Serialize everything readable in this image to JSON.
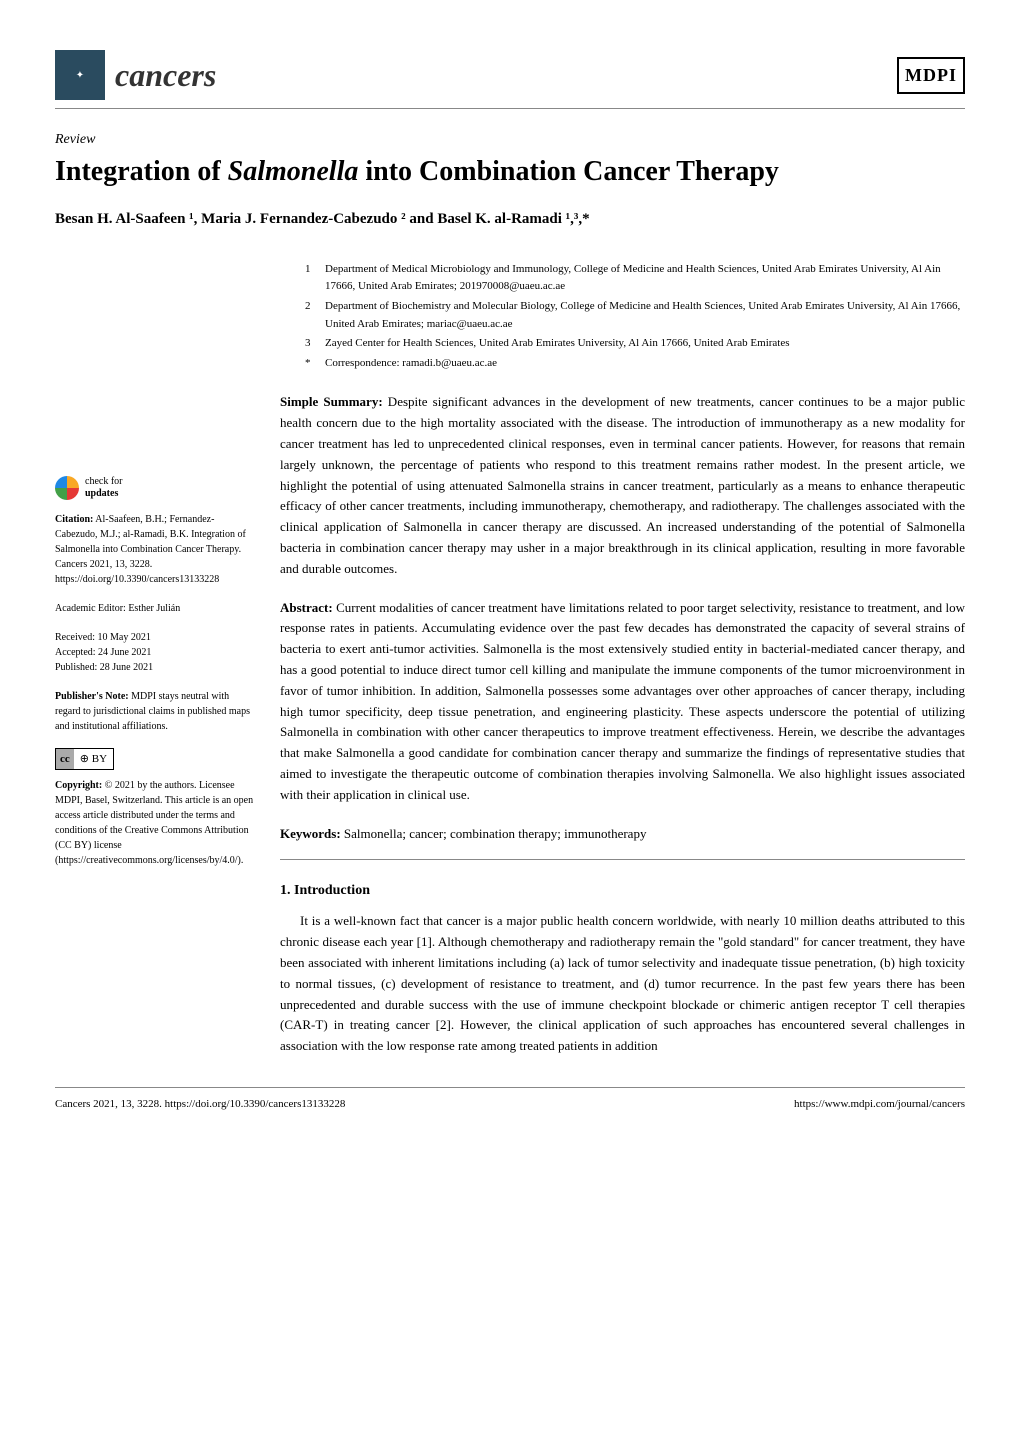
{
  "journal": {
    "name": "cancers",
    "publisher": "MDPI"
  },
  "article": {
    "type": "Review",
    "title_pre": "Integration of ",
    "title_em": "Salmonella",
    "title_post": " into Combination Cancer Therapy",
    "authors": "Besan H. Al-Saafeen ¹, Maria J. Fernandez-Cabezudo ² and Basel K. al-Ramadi ¹,³,*"
  },
  "affiliations": [
    {
      "num": "1",
      "text": "Department of Medical Microbiology and Immunology, College of Medicine and Health Sciences, United Arab Emirates University, Al Ain 17666, United Arab Emirates; 201970008@uaeu.ac.ae"
    },
    {
      "num": "2",
      "text": "Department of Biochemistry and Molecular Biology, College of Medicine and Health Sciences, United Arab Emirates University, Al Ain 17666, United Arab Emirates; mariac@uaeu.ac.ae"
    },
    {
      "num": "3",
      "text": "Zayed Center for Health Sciences, United Arab Emirates University, Al Ain 17666, United Arab Emirates"
    },
    {
      "num": "*",
      "text": "Correspondence: ramadi.b@uaeu.ac.ae"
    }
  ],
  "simple_summary": {
    "label": "Simple Summary:",
    "text": " Despite significant advances in the development of new treatments, cancer continues to be a major public health concern due to the high mortality associated with the disease. The introduction of immunotherapy as a new modality for cancer treatment has led to unprecedented clinical responses, even in terminal cancer patients. However, for reasons that remain largely unknown, the percentage of patients who respond to this treatment remains rather modest. In the present article, we highlight the potential of using attenuated Salmonella strains in cancer treatment, particularly as a means to enhance therapeutic efficacy of other cancer treatments, including immunotherapy, chemotherapy, and radiotherapy. The challenges associated with the clinical application of Salmonella in cancer therapy are discussed. An increased understanding of the potential of Salmonella bacteria in combination cancer therapy may usher in a major breakthrough in its clinical application, resulting in more favorable and durable outcomes."
  },
  "abstract": {
    "label": "Abstract:",
    "text": " Current modalities of cancer treatment have limitations related to poor target selectivity, resistance to treatment, and low response rates in patients. Accumulating evidence over the past few decades has demonstrated the capacity of several strains of bacteria to exert anti-tumor activities. Salmonella is the most extensively studied entity in bacterial-mediated cancer therapy, and has a good potential to induce direct tumor cell killing and manipulate the immune components of the tumor microenvironment in favor of tumor inhibition. In addition, Salmonella possesses some advantages over other approaches of cancer therapy, including high tumor specificity, deep tissue penetration, and engineering plasticity. These aspects underscore the potential of utilizing Salmonella in combination with other cancer therapeutics to improve treatment effectiveness. Herein, we describe the advantages that make Salmonella a good candidate for combination cancer therapy and summarize the findings of representative studies that aimed to investigate the therapeutic outcome of combination therapies involving Salmonella. We also highlight issues associated with their application in clinical use."
  },
  "keywords": {
    "label": "Keywords:",
    "text": " Salmonella; cancer; combination therapy; immunotherapy"
  },
  "section1": {
    "heading": "1. Introduction",
    "body": "It is a well-known fact that cancer is a major public health concern worldwide, with nearly 10 million deaths attributed to this chronic disease each year [1]. Although chemotherapy and radiotherapy remain the \"gold standard\" for cancer treatment, they have been associated with inherent limitations including (a) lack of tumor selectivity and inadequate tissue penetration, (b) high toxicity to normal tissues, (c) development of resistance to treatment, and (d) tumor recurrence. In the past few years there has been unprecedented and durable success with the use of immune checkpoint blockade or chimeric antigen receptor T cell therapies (CAR-T) in treating cancer [2]. However, the clinical application of such approaches has encountered several challenges in association with the low response rate among treated patients in addition"
  },
  "sidebar": {
    "check_updates": "check for\nupdates",
    "citation_label": "Citation:",
    "citation_text": " Al-Saafeen, B.H.; Fernandez-Cabezudo, M.J.; al-Ramadi, B.K. Integration of Salmonella into Combination Cancer Therapy. Cancers 2021, 13, 3228. https://doi.org/10.3390/cancers13133228",
    "editor_label": "Academic Editor: ",
    "editor_text": "Esther Julián",
    "received_label": "Received: ",
    "received_text": "10 May 2021",
    "accepted_label": "Accepted: ",
    "accepted_text": "24 June 2021",
    "published_label": "Published: ",
    "published_text": "28 June 2021",
    "pubnote_label": "Publisher's Note:",
    "pubnote_text": " MDPI stays neutral with regard to jurisdictional claims in published maps and institutional affiliations.",
    "cc_label": "cc",
    "by_label": "⊕ BY",
    "copyright_label": "Copyright:",
    "copyright_text": " © 2021 by the authors. Licensee MDPI, Basel, Switzerland. This article is an open access article distributed under the terms and conditions of the Creative Commons Attribution (CC BY) license (https://creativecommons.org/licenses/by/4.0/)."
  },
  "footer": {
    "left": "Cancers 2021, 13, 3228. https://doi.org/10.3390/cancers13133228",
    "right": "https://www.mdpi.com/journal/cancers"
  }
}
